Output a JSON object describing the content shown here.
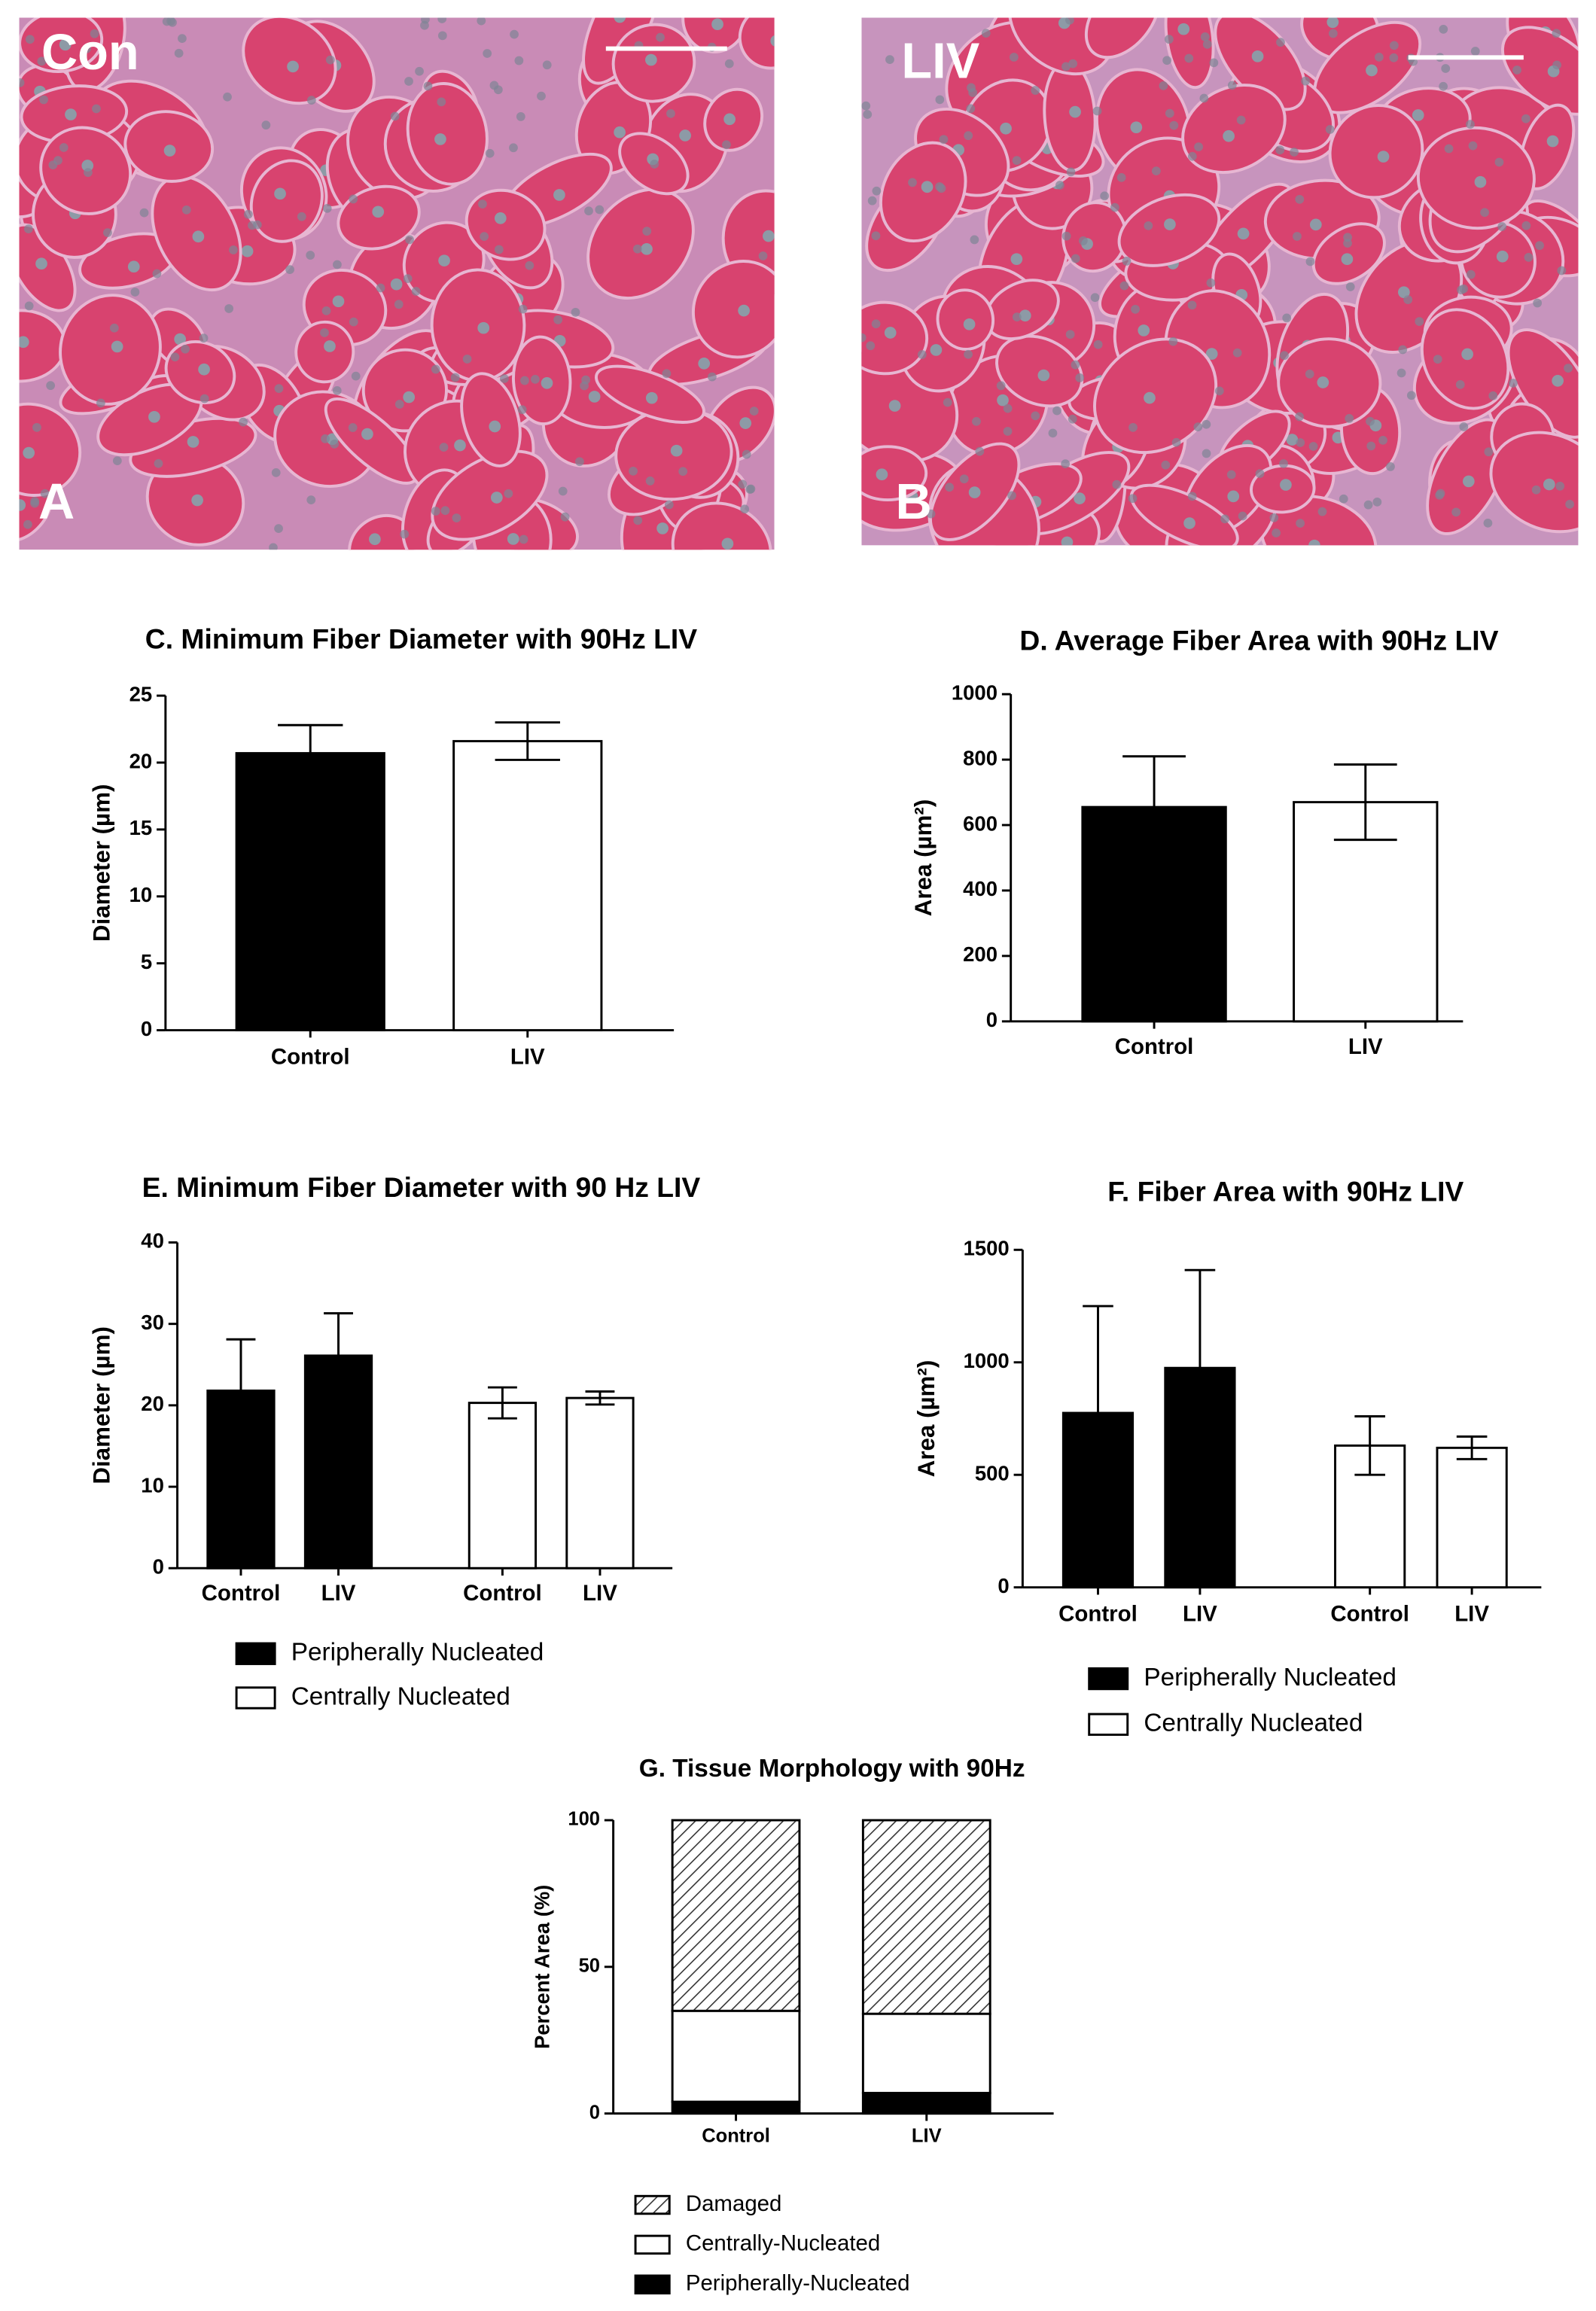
{
  "panels": [
    {
      "label": "Con",
      "letter": "A"
    },
    {
      "label": "LIV",
      "letter": "B"
    }
  ],
  "chart_data": [
    {
      "type": "bar",
      "title": "C. Minimum Fiber Diameter with 90Hz LIV",
      "ylabel": "Diameter (µm)",
      "categories": [
        "Control",
        "LIV"
      ],
      "values": [
        20.7,
        21.6
      ],
      "errors": [
        2.1,
        1.4
      ],
      "colors": [
        "#000000",
        "#ffffff"
      ],
      "ylim": [
        0,
        25
      ],
      "yticks": [
        0,
        5,
        10,
        15,
        20,
        25
      ]
    },
    {
      "type": "bar",
      "title": "D. Average Fiber Area with 90Hz LIV",
      "ylabel": "Area (µm²)",
      "categories": [
        "Control",
        "LIV"
      ],
      "values": [
        655,
        670
      ],
      "errors": [
        155,
        115
      ],
      "colors": [
        "#000000",
        "#ffffff"
      ],
      "ylim": [
        0,
        1000
      ],
      "yticks": [
        0,
        200,
        400,
        600,
        800,
        1000
      ]
    },
    {
      "type": "grouped_bar",
      "title": "E. Minimum Fiber Diameter with 90 Hz LIV",
      "ylabel": "Diameter (µm)",
      "categories": [
        "Control",
        "LIV"
      ],
      "series": [
        {
          "name": "Peripherally Nucleated",
          "color": "#000000",
          "values": [
            21.8,
            26.1
          ],
          "errors": [
            6.3,
            5.2
          ]
        },
        {
          "name": "Centrally Nucleated",
          "color": "#ffffff",
          "values": [
            20.3,
            20.9
          ],
          "errors": [
            1.9,
            0.8
          ]
        }
      ],
      "ylim": [
        0,
        40
      ],
      "yticks": [
        0,
        10,
        20,
        30,
        40
      ],
      "legend": "below"
    },
    {
      "type": "grouped_bar",
      "title": "F. Fiber Area with 90Hz LIV",
      "ylabel": "Area (µm²)",
      "categories": [
        "Control",
        "LIV"
      ],
      "series": [
        {
          "name": "Peripherally Nucleated",
          "color": "#000000",
          "values": [
            775,
            975
          ],
          "errors": [
            475,
            435
          ]
        },
        {
          "name": "Centrally Nucleated",
          "color": "#ffffff",
          "values": [
            630,
            620
          ],
          "errors": [
            130,
            50
          ]
        }
      ],
      "ylim": [
        0,
        1500
      ],
      "yticks": [
        0,
        500,
        1000,
        1500
      ],
      "legend": "below"
    },
    {
      "type": "stacked_bar",
      "title": "G. Tissue Morphology with 90Hz",
      "ylabel": "Percent Area (%)",
      "categories": [
        "Control",
        "LIV"
      ],
      "series": [
        {
          "name": "Peripherally-Nucleated",
          "color": "#000000",
          "values": [
            4,
            7
          ]
        },
        {
          "name": "Centrally-Nucleated",
          "color": "#ffffff",
          "values": [
            31,
            27
          ]
        },
        {
          "name": "Damaged",
          "color": "#333333",
          "hatch": true,
          "values": [
            65,
            66
          ]
        }
      ],
      "ylim": [
        0,
        100
      ],
      "yticks": [
        0,
        50,
        100
      ],
      "legend": "below"
    }
  ]
}
